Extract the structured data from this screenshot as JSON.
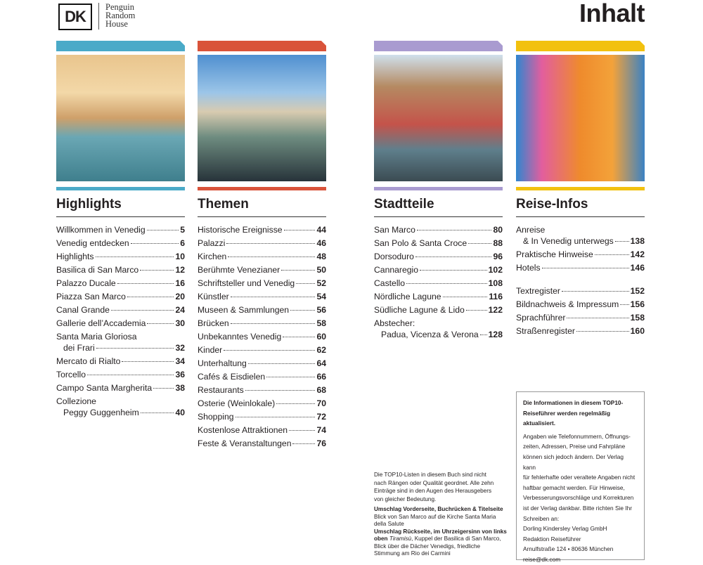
{
  "header": {
    "logo": "DK",
    "publisher": [
      "Penguin",
      "Random",
      "House"
    ],
    "title": "Inhalt"
  },
  "sections": [
    {
      "title": "Highlights",
      "color": "#4aaac8",
      "groups": [
        [
          {
            "lines": [
              "Willkommen in Venedig"
            ],
            "page": 5
          },
          {
            "lines": [
              "Venedig entdecken"
            ],
            "page": 6
          },
          {
            "lines": [
              "Highlights"
            ],
            "page": 10
          },
          {
            "lines": [
              "Basilica di San Marco"
            ],
            "page": 12
          },
          {
            "lines": [
              "Palazzo Ducale"
            ],
            "page": 16
          },
          {
            "lines": [
              "Piazza San Marco"
            ],
            "page": 20
          },
          {
            "lines": [
              "Canal Grande"
            ],
            "page": 24
          },
          {
            "lines": [
              "Gallerie dell’Accademia"
            ],
            "page": 30
          },
          {
            "lines": [
              "Santa Maria Gloriosa",
              "dei Frari"
            ],
            "page": 32
          },
          {
            "lines": [
              "Mercato di Rialto"
            ],
            "page": 34
          },
          {
            "lines": [
              "Torcello"
            ],
            "page": 36
          },
          {
            "lines": [
              "Campo Santa Margherita"
            ],
            "page": 38
          },
          {
            "lines": [
              "Collezione",
              "Peggy Guggenheim"
            ],
            "page": 40
          }
        ]
      ]
    },
    {
      "title": "Themen",
      "color": "#d9533a",
      "groups": [
        [
          {
            "lines": [
              "Historische Ereignisse"
            ],
            "page": 44
          },
          {
            "lines": [
              "Palazzi"
            ],
            "page": 46
          },
          {
            "lines": [
              "Kirchen"
            ],
            "page": 48
          },
          {
            "lines": [
              "Berühmte Venezianer"
            ],
            "page": 50
          },
          {
            "lines": [
              "Schriftsteller und Venedig"
            ],
            "page": 52
          },
          {
            "lines": [
              "Künstler"
            ],
            "page": 54
          },
          {
            "lines": [
              "Museen & Sammlungen"
            ],
            "page": 56
          },
          {
            "lines": [
              "Brücken"
            ],
            "page": 58
          },
          {
            "lines": [
              "Unbekanntes Venedig"
            ],
            "page": 60
          },
          {
            "lines": [
              "Kinder"
            ],
            "page": 62
          },
          {
            "lines": [
              "Unterhaltung"
            ],
            "page": 64
          },
          {
            "lines": [
              "Cafés & Eisdielen"
            ],
            "page": 66
          },
          {
            "lines": [
              "Restaurants"
            ],
            "page": 68
          },
          {
            "lines": [
              "Osterie (Weinlokale)"
            ],
            "page": 70
          },
          {
            "lines": [
              "Shopping"
            ],
            "page": 72
          },
          {
            "lines": [
              "Kostenlose Attraktionen"
            ],
            "page": 74
          },
          {
            "lines": [
              "Feste & Veranstaltungen"
            ],
            "page": 76
          }
        ]
      ]
    },
    {
      "title": "Stadtteile",
      "color": "#a99bd0",
      "groups": [
        [
          {
            "lines": [
              "San Marco"
            ],
            "page": 80
          },
          {
            "lines": [
              "San Polo & Santa Croce"
            ],
            "page": 88
          },
          {
            "lines": [
              "Dorsoduro"
            ],
            "page": 96
          },
          {
            "lines": [
              "Cannaregio"
            ],
            "page": 102
          },
          {
            "lines": [
              "Castello"
            ],
            "page": 108
          },
          {
            "lines": [
              "Nördliche Lagune"
            ],
            "page": 116
          },
          {
            "lines": [
              "Südliche Lagune & Lido"
            ],
            "page": 122
          },
          {
            "lines": [
              "Abstecher:",
              "Padua, Vicenza & Verona"
            ],
            "page": 128
          }
        ]
      ]
    },
    {
      "title": "Reise-Infos",
      "color": "#f2c10f",
      "groups": [
        [
          {
            "lines": [
              "Anreise",
              "& In Venedig unterwegs"
            ],
            "page": 138
          },
          {
            "lines": [
              "Praktische Hinweise"
            ],
            "page": 142
          },
          {
            "lines": [
              "Hotels"
            ],
            "page": 146
          }
        ],
        [
          {
            "lines": [
              "Textregister"
            ],
            "page": 152
          },
          {
            "lines": [
              "Bildnachweis & Impressum"
            ],
            "page": 156
          },
          {
            "lines": [
              "Sprachführer"
            ],
            "page": 158
          },
          {
            "lines": [
              "Straßenregister"
            ],
            "page": 160
          }
        ]
      ]
    }
  ],
  "note": [
    "Die TOP10-Listen in diesem Buch sind nicht",
    "nach Rängen oder Qualität geordnet. Alle zehn",
    "Einträge sind in den Augen des Herausgebers",
    "von gleicher Bedeutung."
  ],
  "credits": [
    [
      {
        "style": "bold",
        "text": "Umschlag Vorderseite, Buchrücken & Titelseite "
      },
      {
        "style": "plain",
        "text": "Blick von San Marco auf die Kirche Santa Maria della Salute"
      }
    ],
    [
      {
        "style": "bold",
        "text": "Umschlag Rückseite, im Uhrzeigersinn von links oben "
      },
      {
        "style": "italic",
        "text": "Tiramisù"
      },
      {
        "style": "plain",
        "text": ", Kuppel der Basilica di San Marco, Blick über die Dächer Venedigs, friedliche Stimmung am Rio dei Carmini"
      }
    ]
  ],
  "info_box": {
    "heading": [
      "Die Informationen in diesem TOP10-",
      "Reiseführer werden regelmäßig",
      "aktualisiert."
    ],
    "body": [
      "Angaben wie Telefonnummern, Öffnungs-",
      "zeiten, Adressen, Preise und Fahrpläne",
      "können sich jedoch ändern. Der Verlag kann",
      "für fehlerhafte oder veraltete Angaben nicht",
      "haftbar gemacht werden. Für Hinweise,",
      "Verbesserungsvorschläge und Korrekturen",
      "ist der Verlag dankbar. Bitte richten Sie Ihr",
      "Schreiben an:",
      "Dorling Kindersley Verlag GmbH",
      "Redaktion Reiseführer",
      "Arnulfstraße 124 • 80636 München",
      "reise@dk.com"
    ]
  }
}
